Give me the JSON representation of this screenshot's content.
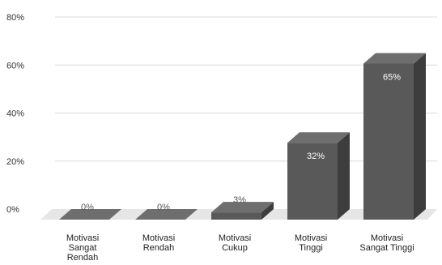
{
  "chart_data": {
    "type": "bar",
    "style": "3d-column",
    "categories": [
      [
        "Motivasi",
        "Sangat",
        "Rendah"
      ],
      [
        "Motivasi",
        "Rendah"
      ],
      [
        "Motivasi",
        "Cukup"
      ],
      [
        "Motivasi",
        "Tinggi"
      ],
      [
        "Motivasi",
        "Sangat Tinggi"
      ]
    ],
    "values": [
      0,
      0,
      3,
      32,
      65
    ],
    "data_labels": [
      "0%",
      "0%",
      "3%",
      "32%",
      "65%"
    ],
    "yticks": [
      "0%",
      "20%",
      "40%",
      "60%",
      "80%"
    ],
    "ylim": [
      0,
      80
    ],
    "grid": true,
    "colors": {
      "bar_front": "#595959",
      "bar_top": "#6e6e6e",
      "bar_side": "#3d3d3d",
      "floor": "#e6e6e6",
      "grid": "#d9d9d9"
    }
  }
}
